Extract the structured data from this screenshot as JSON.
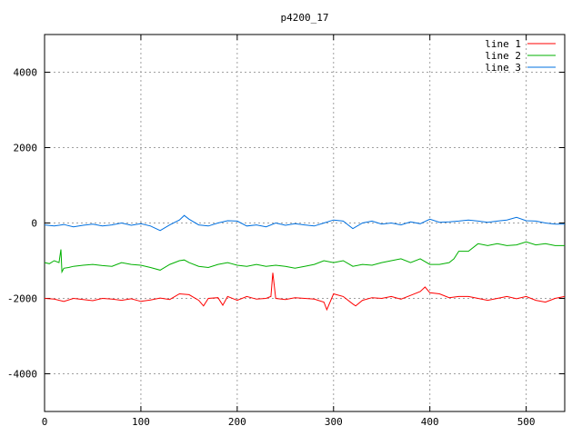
{
  "chart_data": {
    "type": "line",
    "title": "p4200_17",
    "xlabel": "",
    "ylabel": "",
    "xlim": [
      0,
      540
    ],
    "ylim": [
      -5000,
      5000
    ],
    "xticks": [
      0,
      100,
      200,
      300,
      400,
      500
    ],
    "yticks": [
      -4000,
      -2000,
      0,
      2000,
      4000
    ],
    "grid": true,
    "legend_position": "top-right",
    "series": [
      {
        "name": "line 1",
        "color": "#ff0000",
        "x": [
          0,
          10,
          20,
          30,
          40,
          50,
          60,
          70,
          80,
          90,
          100,
          110,
          120,
          130,
          140,
          150,
          160,
          165,
          170,
          180,
          185,
          190,
          200,
          210,
          220,
          230,
          235,
          237,
          240,
          250,
          260,
          270,
          280,
          290,
          293,
          300,
          310,
          320,
          323,
          330,
          340,
          350,
          360,
          370,
          380,
          390,
          395,
          400,
          410,
          420,
          430,
          440,
          450,
          460,
          470,
          480,
          490,
          500,
          510,
          520,
          530,
          540
        ],
        "y": [
          -2000,
          -2020,
          -2080,
          -2000,
          -2030,
          -2060,
          -2000,
          -2020,
          -2050,
          -2010,
          -2080,
          -2040,
          -1990,
          -2030,
          -1880,
          -1900,
          -2050,
          -2200,
          -2000,
          -1980,
          -2180,
          -1950,
          -2050,
          -1950,
          -2020,
          -2000,
          -1950,
          -1320,
          -2000,
          -2030,
          -1980,
          -2000,
          -2020,
          -2100,
          -2300,
          -1880,
          -1950,
          -2150,
          -2200,
          -2050,
          -1980,
          -2000,
          -1950,
          -2020,
          -1920,
          -1820,
          -1700,
          -1850,
          -1880,
          -1980,
          -1950,
          -1950,
          -2000,
          -2050,
          -2000,
          -1950,
          -2010,
          -1950,
          -2050,
          -2100,
          -2000,
          -1950
        ]
      },
      {
        "name": "line 2",
        "color": "#00b000",
        "x": [
          0,
          5,
          10,
          15,
          17,
          18,
          20,
          25,
          30,
          40,
          50,
          60,
          70,
          80,
          90,
          100,
          110,
          120,
          130,
          140,
          145,
          150,
          160,
          170,
          180,
          190,
          200,
          210,
          220,
          230,
          240,
          250,
          260,
          270,
          280,
          290,
          300,
          310,
          320,
          330,
          340,
          350,
          360,
          370,
          380,
          390,
          400,
          410,
          420,
          425,
          430,
          440,
          450,
          460,
          470,
          480,
          490,
          500,
          510,
          520,
          530,
          540
        ],
        "y": [
          -1050,
          -1080,
          -1000,
          -1050,
          -700,
          -1300,
          -1200,
          -1180,
          -1150,
          -1120,
          -1100,
          -1130,
          -1150,
          -1050,
          -1100,
          -1120,
          -1180,
          -1250,
          -1100,
          -1000,
          -980,
          -1050,
          -1150,
          -1180,
          -1100,
          -1050,
          -1120,
          -1150,
          -1100,
          -1150,
          -1120,
          -1150,
          -1200,
          -1150,
          -1100,
          -1000,
          -1050,
          -1000,
          -1150,
          -1100,
          -1120,
          -1050,
          -1000,
          -950,
          -1050,
          -950,
          -1100,
          -1100,
          -1050,
          -950,
          -750,
          -750,
          -550,
          -600,
          -550,
          -600,
          -580,
          -500,
          -580,
          -550,
          -600,
          -600
        ]
      },
      {
        "name": "line 3",
        "color": "#0070e0",
        "x": [
          0,
          10,
          20,
          30,
          40,
          50,
          60,
          70,
          80,
          90,
          100,
          110,
          120,
          130,
          140,
          145,
          150,
          160,
          170,
          180,
          190,
          200,
          210,
          220,
          230,
          240,
          250,
          260,
          270,
          280,
          290,
          300,
          310,
          320,
          330,
          340,
          350,
          360,
          370,
          380,
          390,
          400,
          410,
          420,
          430,
          440,
          450,
          460,
          470,
          480,
          490,
          500,
          510,
          520,
          530,
          540
        ],
        "y": [
          -50,
          -80,
          -40,
          -100,
          -60,
          -30,
          -80,
          -50,
          0,
          -60,
          -20,
          -80,
          -200,
          -50,
          80,
          200,
          100,
          -50,
          -80,
          0,
          60,
          50,
          -80,
          -50,
          -100,
          0,
          -60,
          -20,
          -50,
          -80,
          0,
          80,
          50,
          -150,
          0,
          50,
          -30,
          0,
          -50,
          30,
          -20,
          100,
          20,
          30,
          50,
          80,
          50,
          20,
          50,
          80,
          150,
          60,
          50,
          0,
          -30,
          -30
        ]
      }
    ]
  }
}
